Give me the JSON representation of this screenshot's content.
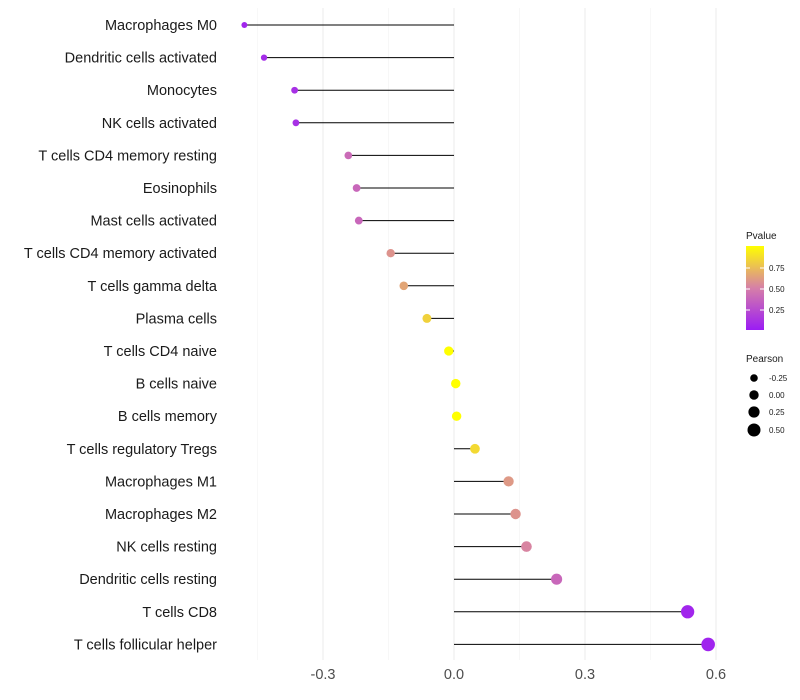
{
  "chart_data": {
    "type": "lollipop",
    "title": "",
    "xlabel": "",
    "ylabel": "",
    "xlim": [
      -0.45,
      0.61
    ],
    "x_ticks": [
      -0.3,
      0.0,
      0.3,
      0.6
    ],
    "x_tick_labels": [
      "-0.3",
      "0.0",
      "0.3",
      "0.6"
    ],
    "grid": true,
    "categories": [
      "Macrophages M0",
      "Dendritic cells activated",
      "Monocytes",
      "NK cells activated",
      "T cells CD4 memory resting",
      "Eosinophils",
      "Mast cells activated",
      "T cells CD4 memory activated",
      "T cells gamma delta",
      "Plasma cells",
      "T cells CD4 naive",
      "B cells naive",
      "B cells memory",
      "T cells regulatory  Tregs",
      "Macrophages M1",
      "Macrophages M2",
      "NK cells resting",
      "Dendritic cells resting",
      "T cells CD8",
      "T cells follicular helper"
    ],
    "values": [
      -0.48,
      -0.435,
      -0.365,
      -0.362,
      -0.242,
      -0.223,
      -0.218,
      -0.145,
      -0.115,
      -0.062,
      -0.012,
      0.004,
      0.006,
      0.048,
      0.125,
      0.141,
      0.166,
      0.235,
      0.535,
      0.582
    ],
    "pvalues": [
      0.05,
      0.08,
      0.1,
      0.1,
      0.4,
      0.38,
      0.38,
      0.58,
      0.65,
      0.82,
      1.0,
      1.0,
      1.0,
      0.85,
      0.6,
      0.58,
      0.52,
      0.38,
      0.05,
      0.04
    ],
    "legend": {
      "position": "right",
      "color": {
        "title": "Pvalue",
        "ticks": [
          "0.75",
          "0.50",
          "0.25"
        ],
        "colors": {
          "low": "#9b1cf4",
          "mid": "#d67fa8",
          "high": "#ffff00"
        }
      },
      "size": {
        "title": "Pearson",
        "ticks": [
          "-0.25",
          "0.00",
          "0.25",
          "0.50"
        ]
      }
    }
  }
}
